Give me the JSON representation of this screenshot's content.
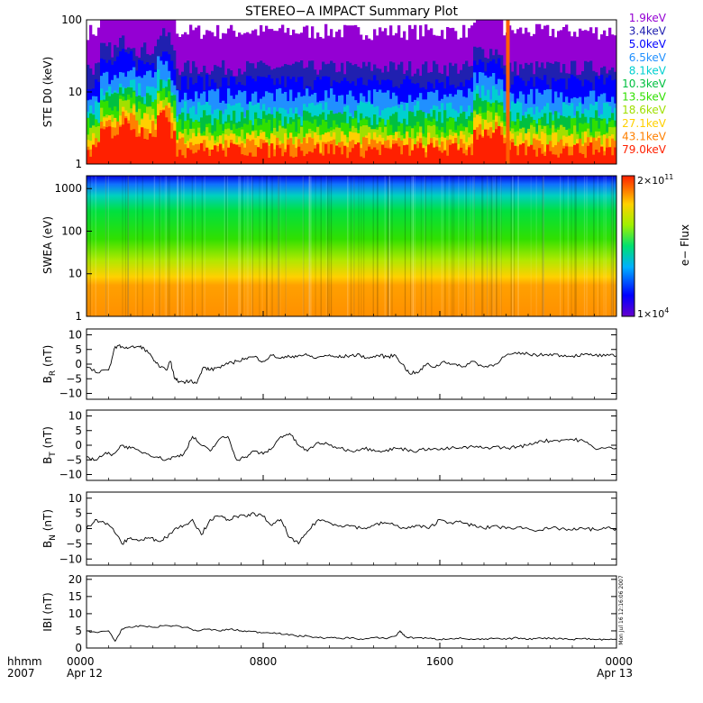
{
  "title": "STEREO−A IMPACT Summary Plot",
  "timestamp": "Mon Jul 16 12:16:06 2007",
  "colors": {
    "energy": [
      "#9400d3",
      "#2020b0",
      "#0000ff",
      "#2090ff",
      "#00d0d0",
      "#00c040",
      "#30e000",
      "#a0e000",
      "#ffd000",
      "#ff8000",
      "#ff2000"
    ],
    "trace": "#000000"
  },
  "chart_data": [
    {
      "type": "heatmap",
      "panel": "ste",
      "ylabel": "STE D0 (keV)",
      "scale": "log",
      "ylim": [
        1,
        100
      ],
      "yticks": [
        {
          "v": 1,
          "label": "1"
        },
        {
          "v": 10,
          "label": "10"
        },
        {
          "v": 100,
          "label": "100"
        }
      ],
      "legend": [
        "1.9keV",
        "3.4keV",
        "5.0keV",
        "6.5keV",
        "8.1keV",
        "10.3keV",
        "13.5keV",
        "18.6keV",
        "27.1keV",
        "43.1keV",
        "79.0keV"
      ],
      "legend_placement": "right"
    },
    {
      "type": "heatmap",
      "panel": "swea",
      "ylabel": "SWEA (eV)",
      "scale": "log",
      "ylim": [
        1,
        2000
      ],
      "yticks": [
        {
          "v": 1,
          "label": "1"
        },
        {
          "v": 10,
          "label": "10"
        },
        {
          "v": 100,
          "label": "100"
        },
        {
          "v": 1000,
          "label": "1000"
        }
      ],
      "colorbar": {
        "label": "e− Flux",
        "min": "1×10",
        "min_exp": "4",
        "max": "2×10",
        "max_exp": "11"
      }
    },
    {
      "type": "line",
      "panel": "br",
      "ylabel_main": "B",
      "ylabel_sub": "R",
      "ylabel_unit": " (nT)",
      "ylim": [
        -12,
        12
      ],
      "yticks": [
        {
          "v": -10,
          "label": "−10"
        },
        {
          "v": -5,
          "label": "−5"
        },
        {
          "v": 0,
          "label": "0"
        },
        {
          "v": 5,
          "label": "5"
        },
        {
          "v": 10,
          "label": "10"
        }
      ],
      "x": [
        0,
        0.5,
        1,
        1.3,
        1.6,
        1.9,
        2.3,
        2.6,
        3,
        3.3,
        3.6,
        3.8,
        4,
        4.2,
        4.5,
        4.7,
        5,
        5.3,
        5.6,
        6,
        6.4,
        6.8,
        7.2,
        7.6,
        8,
        8.4,
        8.8,
        9.2,
        9.6,
        10,
        10.4,
        10.8,
        11.2,
        11.6,
        12,
        12.4,
        12.8,
        13.2,
        13.6,
        14,
        14.3,
        14.6,
        15,
        15.4,
        15.8,
        16.2,
        16.6,
        17,
        17.5,
        18,
        18.5,
        19,
        19.5,
        20,
        20.5,
        21,
        21.5,
        22,
        22.5,
        23,
        23.5,
        24
      ],
      "y": [
        -1,
        -3,
        -2,
        6,
        6,
        5.5,
        6,
        5.5,
        2,
        -1,
        -2,
        1,
        -5,
        -6,
        -6,
        -5.5,
        -6.5,
        -1,
        -2,
        -1,
        0,
        1,
        2,
        2.5,
        1,
        3,
        2,
        2.5,
        3,
        3,
        2,
        3,
        2.5,
        2.5,
        3,
        3,
        2,
        3,
        2.5,
        3,
        0,
        -3,
        -3,
        0,
        -1,
        1,
        0,
        -1,
        1,
        -1,
        0,
        3,
        3.5,
        3.5,
        3,
        3.5,
        3,
        2.8,
        3.2,
        3,
        2.8,
        2.8
      ]
    },
    {
      "type": "line",
      "panel": "bt",
      "ylabel_main": "B",
      "ylabel_sub": "T",
      "ylabel_unit": " (nT)",
      "ylim": [
        -12,
        12
      ],
      "yticks": [
        {
          "v": -10,
          "label": "−10"
        },
        {
          "v": -5,
          "label": "−5"
        },
        {
          "v": 0,
          "label": "0"
        },
        {
          "v": 5,
          "label": "5"
        },
        {
          "v": 10,
          "label": "10"
        }
      ],
      "x": [
        0,
        0.4,
        0.8,
        1.2,
        1.6,
        2,
        2.4,
        2.8,
        3.2,
        3.6,
        4,
        4.4,
        4.8,
        5.2,
        5.6,
        6,
        6.4,
        6.8,
        7.2,
        7.6,
        8,
        8.4,
        8.8,
        9.2,
        9.6,
        10,
        10.5,
        11,
        11.5,
        12,
        12.5,
        13,
        13.5,
        14,
        14.5,
        15,
        15.5,
        16,
        16.5,
        17,
        17.5,
        18,
        18.5,
        19,
        19.5,
        20,
        20.5,
        21,
        21.5,
        22,
        22.5,
        23,
        23.5,
        24
      ],
      "y": [
        -4,
        -5,
        -3,
        -3,
        0,
        -1,
        -2,
        -3,
        -4,
        -5,
        -4,
        -3,
        3,
        0,
        -2,
        2,
        3,
        -5,
        -4,
        -2,
        -3,
        -1,
        3,
        4,
        0,
        -2,
        1,
        0,
        -1,
        -2,
        -1,
        -1.5,
        -2,
        -1,
        -1.5,
        -2,
        -1,
        -1.5,
        -1,
        -1,
        -0.5,
        -1,
        -0.5,
        -1,
        -0.5,
        0,
        1.5,
        1.5,
        1.8,
        2,
        1.5,
        -1,
        -1,
        -1
      ]
    },
    {
      "type": "line",
      "panel": "bn",
      "ylabel_main": "B",
      "ylabel_sub": "N",
      "ylabel_unit": " (nT)",
      "ylim": [
        -12,
        12
      ],
      "yticks": [
        {
          "v": -10,
          "label": "−10"
        },
        {
          "v": -5,
          "label": "−5"
        },
        {
          "v": 0,
          "label": "0"
        },
        {
          "v": 5,
          "label": "5"
        },
        {
          "v": 10,
          "label": "10"
        }
      ],
      "x": [
        0,
        0.4,
        0.8,
        1.2,
        1.6,
        2,
        2.4,
        2.8,
        3.2,
        3.6,
        4,
        4.4,
        4.8,
        5.2,
        5.6,
        6,
        6.4,
        6.8,
        7.2,
        7.6,
        8,
        8.4,
        8.8,
        9.2,
        9.6,
        10,
        10.5,
        11,
        11.5,
        12,
        12.5,
        13,
        13.5,
        14,
        14.5,
        15,
        15.5,
        16,
        16.5,
        17,
        17.5,
        18,
        18.5,
        19,
        19.5,
        20,
        20.5,
        21,
        21.5,
        22,
        22.5,
        23,
        23.5,
        24
      ],
      "y": [
        0,
        3,
        2,
        0,
        -5,
        -3,
        -4,
        -3,
        -4,
        -3,
        0,
        1,
        3,
        -2,
        3,
        4,
        3,
        4,
        4,
        5,
        4,
        1,
        3,
        -3,
        -5,
        -1,
        3,
        2,
        1,
        1,
        0,
        1,
        2,
        1,
        0,
        1,
        0,
        3,
        2,
        2,
        1,
        0,
        1,
        0,
        0.5,
        0,
        -0.5,
        0,
        0,
        -0.5,
        0,
        -0.3,
        0,
        0
      ]
    },
    {
      "type": "line",
      "panel": "bmag",
      "ylabel": "IBI (nT)",
      "ylim": [
        0,
        21
      ],
      "yticks": [
        {
          "v": 0,
          "label": "0"
        },
        {
          "v": 5,
          "label": "5"
        },
        {
          "v": 10,
          "label": "10"
        },
        {
          "v": 15,
          "label": "15"
        },
        {
          "v": 20,
          "label": "20"
        }
      ],
      "x": [
        0,
        0.5,
        1,
        1.3,
        1.6,
        2,
        2.5,
        3,
        3.5,
        4,
        4.5,
        5,
        5.5,
        6,
        6.5,
        7,
        7.5,
        8,
        8.5,
        9,
        9.5,
        10,
        10.5,
        11,
        11.5,
        12,
        12.5,
        13,
        13.5,
        14,
        14.2,
        14.4,
        14.6,
        15,
        15.5,
        16,
        16.5,
        17,
        17.5,
        18,
        18.5,
        19,
        19.5,
        20,
        20.5,
        21,
        21.5,
        22,
        22.5,
        23,
        23.5,
        24
      ],
      "y": [
        5,
        4.5,
        5,
        2,
        5.5,
        6,
        6.5,
        6,
        6.5,
        6.5,
        6,
        5,
        5.5,
        5,
        5.5,
        5,
        4.8,
        4.5,
        4.5,
        4,
        3.5,
        3.5,
        3,
        3,
        2.8,
        3,
        2.5,
        3,
        2.8,
        3.5,
        5,
        3.5,
        3,
        3,
        2.8,
        2.5,
        2.8,
        2.8,
        2.5,
        2.5,
        2.8,
        2.5,
        3,
        2.5,
        3,
        2.8,
        2.8,
        2.5,
        2.8,
        2.5,
        2.5,
        2.5
      ]
    }
  ],
  "xaxis": {
    "ticks": [
      {
        "hour": 0,
        "label": "0000",
        "sub": "Apr 12"
      },
      {
        "hour": 8,
        "label": "0800",
        "sub": ""
      },
      {
        "hour": 16,
        "label": "1600",
        "sub": ""
      },
      {
        "hour": 24,
        "label": "0000",
        "sub": "Apr 13"
      }
    ],
    "fmt_label": "hhmm",
    "year_label": "2007",
    "range_hours": [
      0,
      24
    ]
  }
}
